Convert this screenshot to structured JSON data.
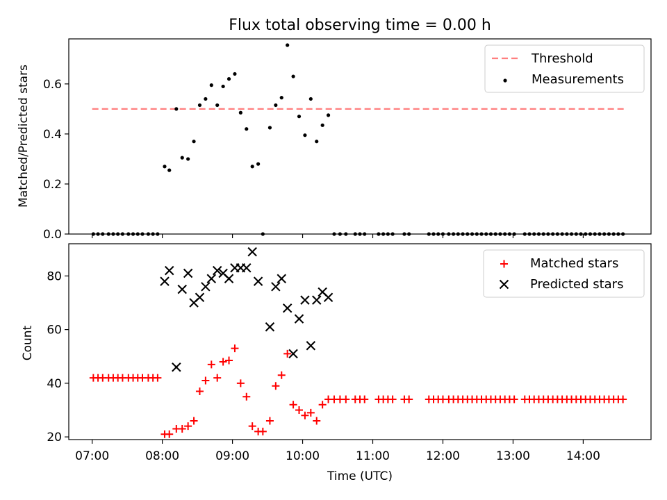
{
  "chart_data": [
    {
      "type": "scatter",
      "title": "Flux total observing time = 0.00 h",
      "ylabel": "Matched/Predicted stars",
      "xlabel": "",
      "xlim": [
        "06:40",
        "14:58"
      ],
      "ylim": [
        0,
        0.78
      ],
      "yticks": [
        "0.0",
        "0.2",
        "0.4",
        "0.6"
      ],
      "xticks": [
        "07:00",
        "08:00",
        "09:00",
        "10:00",
        "11:00",
        "12:00",
        "13:00",
        "14:00"
      ],
      "show_xtick_labels": false,
      "grid": false,
      "legend_position": "top-right",
      "threshold": {
        "name": "Threshold",
        "value": 0.5,
        "x_start": "07:00",
        "x_end": "14:35",
        "color": "#ff7f7f",
        "style": "dashed"
      },
      "series": [
        {
          "name": "Measurements",
          "color": "#000000",
          "marker": "dot",
          "points": [
            [
              "07:01",
              0
            ],
            [
              "07:05",
              0
            ],
            [
              "07:09",
              0
            ],
            [
              "07:14",
              0
            ],
            [
              "07:18",
              0
            ],
            [
              "07:22",
              0
            ],
            [
              "07:26",
              0
            ],
            [
              "07:31",
              0
            ],
            [
              "07:35",
              0
            ],
            [
              "07:39",
              0
            ],
            [
              "07:43",
              0
            ],
            [
              "07:48",
              0
            ],
            [
              "07:52",
              0
            ],
            [
              "07:56",
              0
            ],
            [
              "08:02",
              0.27
            ],
            [
              "08:06",
              0.255
            ],
            [
              "08:12",
              0.5
            ],
            [
              "08:17",
              0.305
            ],
            [
              "08:22",
              0.3
            ],
            [
              "08:27",
              0.37
            ],
            [
              "08:32",
              0.515
            ],
            [
              "08:37",
              0.54
            ],
            [
              "08:42",
              0.595
            ],
            [
              "08:47",
              0.515
            ],
            [
              "08:52",
              0.59
            ],
            [
              "08:57",
              0.62
            ],
            [
              "09:02",
              0.64
            ],
            [
              "09:07",
              0.485
            ],
            [
              "09:12",
              0.42
            ],
            [
              "09:17",
              0.27
            ],
            [
              "09:22",
              0.28
            ],
            [
              "09:26",
              0
            ],
            [
              "09:32",
              0.425
            ],
            [
              "09:37",
              0.515
            ],
            [
              "09:42",
              0.545
            ],
            [
              "09:47",
              0.755
            ],
            [
              "09:52",
              0.63
            ],
            [
              "09:57",
              0.47
            ],
            [
              "10:02",
              0.395
            ],
            [
              "10:07",
              0.54
            ],
            [
              "10:12",
              0.37
            ],
            [
              "10:17",
              0.435
            ],
            [
              "10:22",
              0.475
            ],
            [
              "10:27",
              0
            ],
            [
              "10:32",
              0
            ],
            [
              "10:37",
              0
            ],
            [
              "10:45",
              0
            ],
            [
              "10:49",
              0
            ],
            [
              "10:53",
              0
            ],
            [
              "11:05",
              0
            ],
            [
              "11:09",
              0
            ],
            [
              "11:13",
              0
            ],
            [
              "11:17",
              0
            ],
            [
              "11:27",
              0
            ],
            [
              "11:31",
              0
            ],
            [
              "11:48",
              0
            ],
            [
              "11:52",
              0
            ],
            [
              "11:56",
              0
            ],
            [
              "12:00",
              0
            ],
            [
              "12:05",
              0
            ],
            [
              "12:09",
              0
            ],
            [
              "12:13",
              0
            ],
            [
              "12:17",
              0
            ],
            [
              "12:21",
              0
            ],
            [
              "12:25",
              0
            ],
            [
              "12:29",
              0
            ],
            [
              "12:33",
              0
            ],
            [
              "12:37",
              0
            ],
            [
              "12:41",
              0
            ],
            [
              "12:45",
              0
            ],
            [
              "12:49",
              0
            ],
            [
              "12:53",
              0
            ],
            [
              "12:57",
              0
            ],
            [
              "13:01",
              0
            ],
            [
              "13:10",
              0
            ],
            [
              "13:14",
              0
            ],
            [
              "13:18",
              0
            ],
            [
              "13:22",
              0
            ],
            [
              "13:26",
              0
            ],
            [
              "13:30",
              0
            ],
            [
              "13:34",
              0
            ],
            [
              "13:38",
              0
            ],
            [
              "13:42",
              0
            ],
            [
              "13:46",
              0
            ],
            [
              "13:50",
              0
            ],
            [
              "13:54",
              0
            ],
            [
              "13:58",
              0
            ],
            [
              "14:02",
              0
            ],
            [
              "14:06",
              0
            ],
            [
              "14:10",
              0
            ],
            [
              "14:14",
              0
            ],
            [
              "14:18",
              0
            ],
            [
              "14:22",
              0
            ],
            [
              "14:26",
              0
            ],
            [
              "14:30",
              0
            ],
            [
              "14:34",
              0
            ]
          ]
        }
      ]
    },
    {
      "type": "scatter",
      "title": "",
      "ylabel": "Count",
      "xlabel": "Time (UTC)",
      "xlim": [
        "06:40",
        "14:58"
      ],
      "ylim": [
        19,
        92
      ],
      "yticks": [
        "20",
        "40",
        "60",
        "80"
      ],
      "xticks": [
        "07:00",
        "08:00",
        "09:00",
        "10:00",
        "11:00",
        "12:00",
        "13:00",
        "14:00"
      ],
      "show_xtick_labels": true,
      "grid": false,
      "legend_position": "top-right",
      "series": [
        {
          "name": "Matched stars",
          "color": "#ff0000",
          "marker": "plus",
          "points": [
            [
              "07:01",
              42
            ],
            [
              "07:05",
              42
            ],
            [
              "07:09",
              42
            ],
            [
              "07:14",
              42
            ],
            [
              "07:18",
              42
            ],
            [
              "07:22",
              42
            ],
            [
              "07:26",
              42
            ],
            [
              "07:31",
              42
            ],
            [
              "07:35",
              42
            ],
            [
              "07:39",
              42
            ],
            [
              "07:43",
              42
            ],
            [
              "07:48",
              42
            ],
            [
              "07:52",
              42
            ],
            [
              "07:56",
              42
            ],
            [
              "08:02",
              21
            ],
            [
              "08:06",
              21
            ],
            [
              "08:12",
              23
            ],
            [
              "08:17",
              23
            ],
            [
              "08:22",
              24
            ],
            [
              "08:27",
              26
            ],
            [
              "08:32",
              37
            ],
            [
              "08:37",
              41
            ],
            [
              "08:42",
              47
            ],
            [
              "08:47",
              42
            ],
            [
              "08:52",
              48
            ],
            [
              "08:57",
              48.5
            ],
            [
              "09:02",
              53
            ],
            [
              "09:07",
              40
            ],
            [
              "09:12",
              35
            ],
            [
              "09:17",
              24
            ],
            [
              "09:22",
              22
            ],
            [
              "09:26",
              22
            ],
            [
              "09:32",
              26
            ],
            [
              "09:37",
              39
            ],
            [
              "09:42",
              43
            ],
            [
              "09:47",
              51
            ],
            [
              "09:52",
              32
            ],
            [
              "09:57",
              30
            ],
            [
              "10:02",
              28
            ],
            [
              "10:07",
              29
            ],
            [
              "10:12",
              26
            ],
            [
              "10:17",
              32
            ],
            [
              "10:22",
              34
            ],
            [
              "10:27",
              34
            ],
            [
              "10:32",
              34
            ],
            [
              "10:37",
              34
            ],
            [
              "10:45",
              34
            ],
            [
              "10:49",
              34
            ],
            [
              "10:53",
              34
            ],
            [
              "11:05",
              34
            ],
            [
              "11:09",
              34
            ],
            [
              "11:13",
              34
            ],
            [
              "11:17",
              34
            ],
            [
              "11:27",
              34
            ],
            [
              "11:31",
              34
            ],
            [
              "11:48",
              34
            ],
            [
              "11:52",
              34
            ],
            [
              "11:56",
              34
            ],
            [
              "12:00",
              34
            ],
            [
              "12:05",
              34
            ],
            [
              "12:09",
              34
            ],
            [
              "12:13",
              34
            ],
            [
              "12:17",
              34
            ],
            [
              "12:21",
              34
            ],
            [
              "12:25",
              34
            ],
            [
              "12:29",
              34
            ],
            [
              "12:33",
              34
            ],
            [
              "12:37",
              34
            ],
            [
              "12:41",
              34
            ],
            [
              "12:45",
              34
            ],
            [
              "12:49",
              34
            ],
            [
              "12:53",
              34
            ],
            [
              "12:57",
              34
            ],
            [
              "13:01",
              34
            ],
            [
              "13:10",
              34
            ],
            [
              "13:14",
              34
            ],
            [
              "13:18",
              34
            ],
            [
              "13:22",
              34
            ],
            [
              "13:26",
              34
            ],
            [
              "13:30",
              34
            ],
            [
              "13:34",
              34
            ],
            [
              "13:38",
              34
            ],
            [
              "13:42",
              34
            ],
            [
              "13:46",
              34
            ],
            [
              "13:50",
              34
            ],
            [
              "13:54",
              34
            ],
            [
              "13:58",
              34
            ],
            [
              "14:02",
              34
            ],
            [
              "14:06",
              34
            ],
            [
              "14:10",
              34
            ],
            [
              "14:14",
              34
            ],
            [
              "14:18",
              34
            ],
            [
              "14:22",
              34
            ],
            [
              "14:26",
              34
            ],
            [
              "14:30",
              34
            ],
            [
              "14:34",
              34
            ]
          ]
        },
        {
          "name": "Predicted stars",
          "color": "#000000",
          "marker": "x",
          "points": [
            [
              "08:02",
              78
            ],
            [
              "08:06",
              82
            ],
            [
              "08:12",
              46
            ],
            [
              "08:17",
              75
            ],
            [
              "08:22",
              81
            ],
            [
              "08:27",
              70
            ],
            [
              "08:32",
              72
            ],
            [
              "08:37",
              76
            ],
            [
              "08:42",
              79
            ],
            [
              "08:47",
              82
            ],
            [
              "08:52",
              81
            ],
            [
              "08:57",
              79
            ],
            [
              "09:02",
              83
            ],
            [
              "09:07",
              83
            ],
            [
              "09:12",
              83
            ],
            [
              "09:17",
              89
            ],
            [
              "09:22",
              78
            ],
            [
              "09:32",
              61
            ],
            [
              "09:37",
              76
            ],
            [
              "09:42",
              79
            ],
            [
              "09:47",
              68
            ],
            [
              "09:52",
              51
            ],
            [
              "09:57",
              64
            ],
            [
              "10:02",
              71
            ],
            [
              "10:07",
              54
            ],
            [
              "10:12",
              71
            ],
            [
              "10:17",
              74
            ],
            [
              "10:22",
              72
            ]
          ]
        }
      ]
    }
  ]
}
